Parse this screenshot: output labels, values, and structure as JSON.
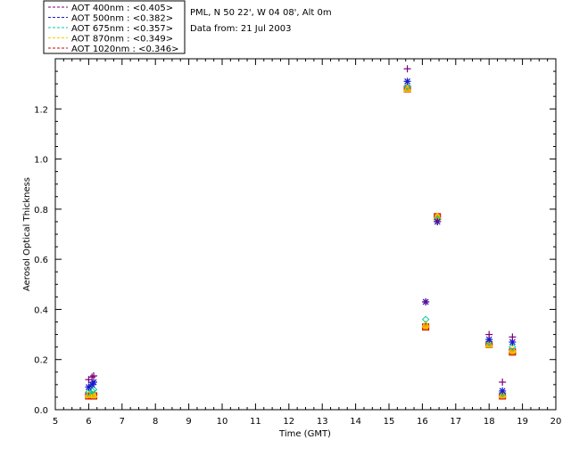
{
  "chart_data": {
    "type": "scatter",
    "xlabel": "Time (GMT)",
    "ylabel": "Aerosol Optical Thickness",
    "xlim": [
      5,
      20
    ],
    "ylim": [
      0.0,
      1.4
    ],
    "xticks": [
      "5",
      "6",
      "7",
      "8",
      "9",
      "10",
      "11",
      "12",
      "13",
      "14",
      "15",
      "16",
      "17",
      "18",
      "19",
      "20"
    ],
    "yticks": [
      "0.0",
      "0.2",
      "0.4",
      "0.6",
      "0.8",
      "1.0",
      "1.2"
    ],
    "info_lines": [
      "PML, N 50 22', W 04 08', Alt 0m",
      "Data from: 21 Jul 2003"
    ],
    "series": [
      {
        "name": "AOT  400nm : <0.405>",
        "color": "#7a0078",
        "marker": "plus",
        "points": [
          [
            6.0,
            0.12
          ],
          [
            6.1,
            0.13
          ],
          [
            6.15,
            0.135
          ],
          [
            15.55,
            1.36
          ],
          [
            16.1,
            0.43
          ],
          [
            16.45,
            0.75
          ],
          [
            18.0,
            0.3
          ],
          [
            18.4,
            0.11
          ],
          [
            18.7,
            0.29
          ]
        ]
      },
      {
        "name": "AOT  500nm : <0.382>",
        "color": "#1a1acc",
        "marker": "asterisk",
        "points": [
          [
            6.0,
            0.09
          ],
          [
            6.1,
            0.1
          ],
          [
            6.15,
            0.11
          ],
          [
            15.55,
            1.31
          ],
          [
            16.1,
            0.43
          ],
          [
            16.45,
            0.75
          ],
          [
            18.0,
            0.28
          ],
          [
            18.4,
            0.075
          ],
          [
            18.7,
            0.27
          ]
        ]
      },
      {
        "name": "AOT  675nm : <0.357>",
        "color": "#00c8a0",
        "marker": "diamond",
        "points": [
          [
            6.0,
            0.07
          ],
          [
            6.1,
            0.075
          ],
          [
            6.15,
            0.08
          ],
          [
            15.55,
            1.29
          ],
          [
            16.1,
            0.36
          ],
          [
            16.45,
            0.76
          ],
          [
            18.0,
            0.27
          ],
          [
            18.4,
            0.065
          ],
          [
            18.7,
            0.25
          ]
        ]
      },
      {
        "name": "AOT  870nm : <0.349>",
        "color": "#f0d000",
        "marker": "triangle",
        "points": [
          [
            6.0,
            0.06
          ],
          [
            6.1,
            0.06
          ],
          [
            6.15,
            0.06
          ],
          [
            15.55,
            1.28
          ],
          [
            16.1,
            0.34
          ],
          [
            16.45,
            0.77
          ],
          [
            18.0,
            0.26
          ],
          [
            18.4,
            0.06
          ],
          [
            18.7,
            0.24
          ]
        ]
      },
      {
        "name": "AOT 1020nm : <0.346>",
        "color": "#d00000",
        "marker": "square",
        "points": [
          [
            6.0,
            0.055
          ],
          [
            6.1,
            0.055
          ],
          [
            6.15,
            0.055
          ],
          [
            15.55,
            1.28
          ],
          [
            16.1,
            0.33
          ],
          [
            16.45,
            0.77
          ],
          [
            18.0,
            0.26
          ],
          [
            18.4,
            0.055
          ],
          [
            18.7,
            0.23
          ]
        ]
      }
    ],
    "legend": [
      {
        "label": "AOT  400nm : <0.405>",
        "color": "#7a0078"
      },
      {
        "label": "AOT  500nm : <0.382>",
        "color": "#1a1acc"
      },
      {
        "label": "AOT  675nm : <0.357>",
        "color": "#00c8a0"
      },
      {
        "label": "AOT  870nm : <0.349>",
        "color": "#f0d000"
      },
      {
        "label": "AOT 1020nm : <0.346>",
        "color": "#d00000"
      }
    ]
  }
}
